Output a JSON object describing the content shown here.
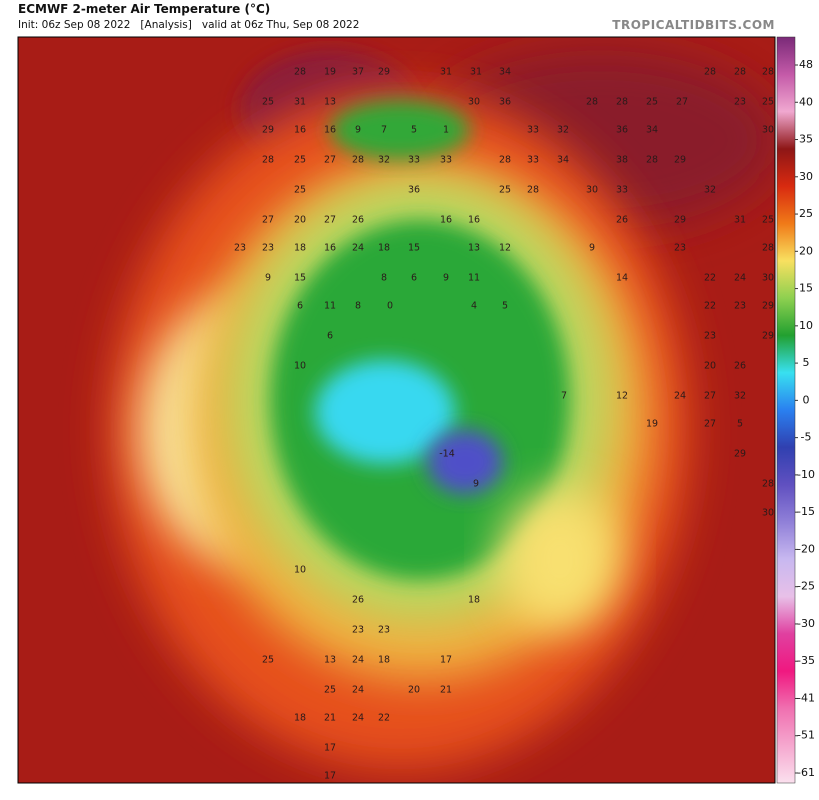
{
  "header": {
    "title": "ECMWF 2-meter Air Temperature (°C)",
    "init": "Init: 06z Sep 08 2022",
    "run": "[Analysis]",
    "valid": "valid at 06z Thu, Sep 08 2022",
    "site": "TROPICALTIDBITS.COM"
  },
  "colorbar": {
    "ticks": [
      48,
      40,
      35,
      30,
      25,
      20,
      15,
      10,
      5,
      0,
      -5,
      -10,
      -15,
      -20,
      -25,
      -30,
      -35,
      -41,
      -51,
      -61
    ]
  },
  "map": {
    "labels": [
      28,
      19,
      37,
      29,
      31,
      31,
      34,
      28,
      28,
      28,
      25,
      31,
      13,
      30,
      36,
      28,
      28,
      25,
      27,
      23,
      25,
      29,
      16,
      16,
      9,
      7,
      5,
      1,
      33,
      32,
      36,
      34,
      30,
      28,
      25,
      27,
      28,
      32,
      33,
      33,
      28,
      33,
      34,
      38,
      28,
      29,
      25,
      36,
      25,
      28,
      30,
      33,
      32,
      27,
      20,
      27,
      26,
      16,
      16,
      26,
      29,
      31,
      25,
      23,
      23,
      18,
      16,
      24,
      18,
      15,
      13,
      12,
      9,
      23,
      28,
      9,
      15,
      8,
      6,
      9,
      11,
      14,
      22,
      24,
      30,
      6,
      11,
      8,
      0,
      4,
      5,
      22,
      23,
      29,
      6,
      23,
      29,
      10,
      20,
      26,
      7,
      12,
      24,
      27,
      32,
      19,
      27,
      5,
      -14,
      29,
      9,
      28,
      30,
      10,
      26,
      18,
      23,
      23,
      25,
      13,
      24,
      18,
      17,
      25,
      24,
      20,
      21,
      18,
      21,
      24,
      22,
      17,
      17
    ]
  }
}
